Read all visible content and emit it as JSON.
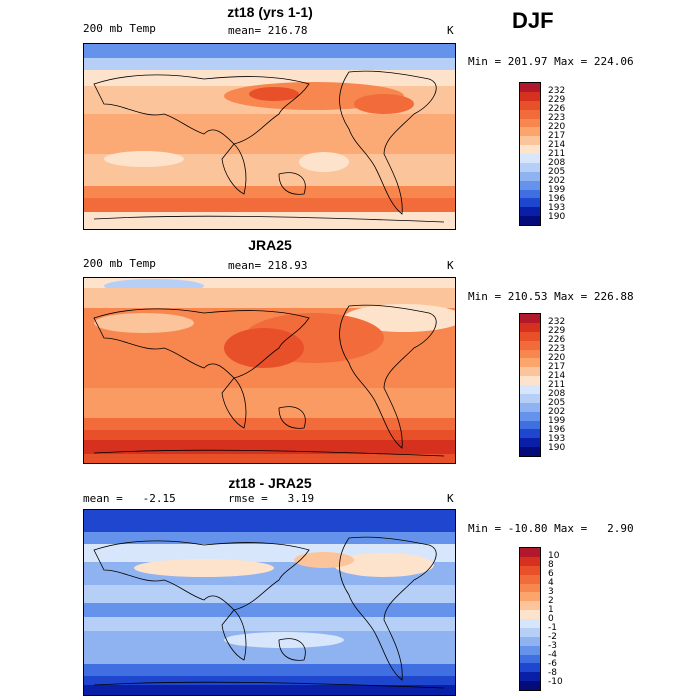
{
  "season": "DJF",
  "panels": [
    {
      "title": "zt18 (yrs 1-1)",
      "left_label": "200 mb Temp",
      "center_label": "mean= 216.78",
      "unit": "K",
      "minmax": "Min = 201.97 Max = 224.06",
      "colorbar": [
        "232",
        "229",
        "226",
        "223",
        "220",
        "217",
        "214",
        "211",
        "208",
        "205",
        "202",
        "199",
        "196",
        "193",
        "190"
      ]
    },
    {
      "title": "JRA25",
      "left_label": "200 mb Temp",
      "center_label": "mean= 218.93",
      "unit": "K",
      "minmax": "Min = 210.53 Max = 226.88",
      "colorbar": [
        "232",
        "229",
        "226",
        "223",
        "220",
        "217",
        "214",
        "211",
        "208",
        "205",
        "202",
        "199",
        "196",
        "193",
        "190"
      ]
    },
    {
      "title": "zt18 - JRA25",
      "left_label": "mean =   -2.15",
      "center_label": "rmse =   3.19",
      "unit": "K",
      "minmax": "Min = -10.80 Max =   2.90",
      "colorbar": [
        "10",
        "8",
        "6",
        "4",
        "3",
        "2",
        "1",
        "0",
        "-1",
        "-2",
        "-3",
        "-4",
        "-6",
        "-8",
        "-10"
      ]
    }
  ],
  "palette": [
    "#b2182b",
    "#d6301f",
    "#e8502a",
    "#f26b3a",
    "#f7874f",
    "#fba46c",
    "#fcc49a",
    "#fde3cc",
    "#d7e6fb",
    "#b6cff7",
    "#8fb2f1",
    "#6592ea",
    "#3f6fe0",
    "#1f46cf",
    "#0a1fa8",
    "#030c7a"
  ]
}
